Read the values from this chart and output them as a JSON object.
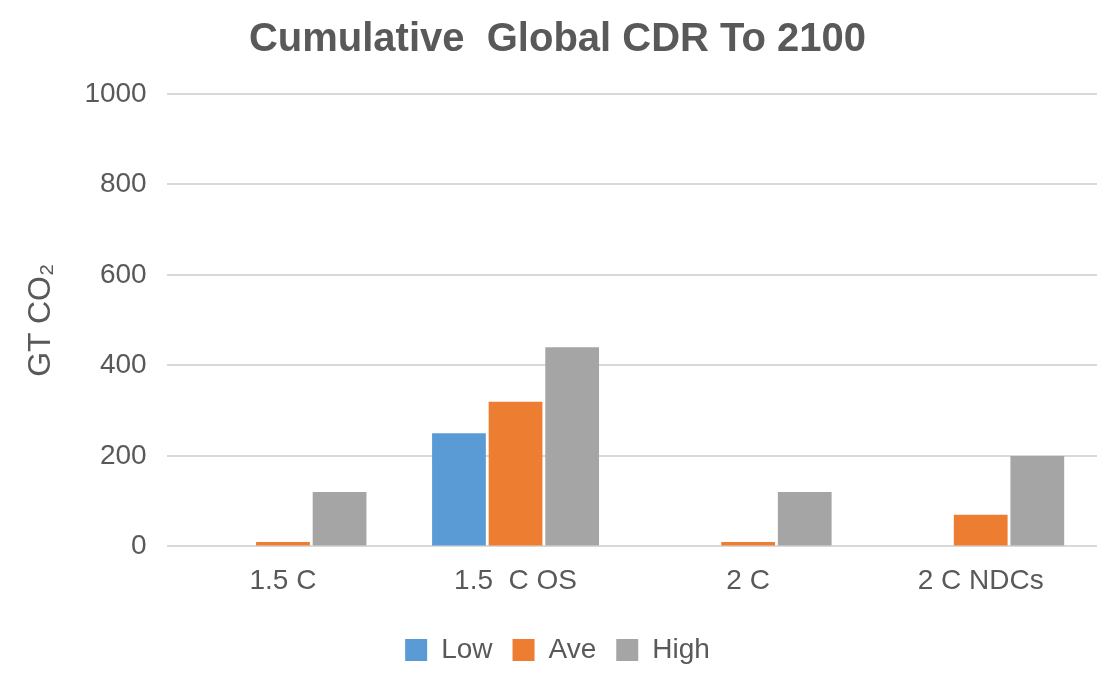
{
  "chart_data": {
    "type": "bar",
    "title": "Cumulative  Global CDR To 2100",
    "ylabel": "GT CO₂",
    "categories": [
      "1.5 C",
      "1.5  C OS",
      "2 C",
      "2 C NDCs"
    ],
    "series": [
      {
        "name": "Low",
        "color": "#5b9bd5",
        "values": [
          null,
          250,
          null,
          null
        ]
      },
      {
        "name": "Ave",
        "color": "#ed7d31",
        "values": [
          10,
          320,
          10,
          70
        ]
      },
      {
        "name": "High",
        "color": "#a5a5a5",
        "values": [
          120,
          440,
          120,
          200
        ]
      }
    ],
    "ylim": [
      0,
      1000
    ],
    "yticks": [
      0,
      200,
      400,
      600,
      800,
      1000
    ],
    "grid": "y",
    "legend": "bottom"
  }
}
